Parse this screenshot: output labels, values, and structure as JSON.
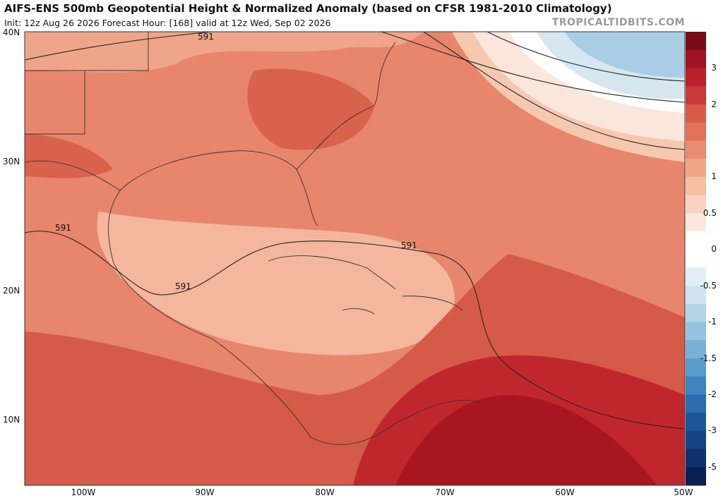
{
  "header": {
    "title": "AIFS-ENS 500mb Geopotential Height & Normalized Anomaly (based on CFSR 1981-2010 Climatology)",
    "subtitle": "Init: 12z Aug 26 2026   Forecast Hour: [168]   valid at 12z Wed, Sep 02 2026",
    "credit": "TROPICALTIDBITS.COM"
  },
  "map": {
    "lat_labels": [
      "40N",
      "30N",
      "20N",
      "10N"
    ],
    "lon_labels": [
      "100W",
      "90W",
      "80W",
      "70W",
      "60W",
      "50W"
    ],
    "contour_labels": [
      "591",
      "591",
      "591",
      "591"
    ]
  },
  "colorbar": {
    "labels": [
      "3",
      "2",
      "1",
      "0.5",
      "0",
      "-0.5",
      "-1",
      "-1.5",
      "-2",
      "-3",
      "-5"
    ]
  }
}
